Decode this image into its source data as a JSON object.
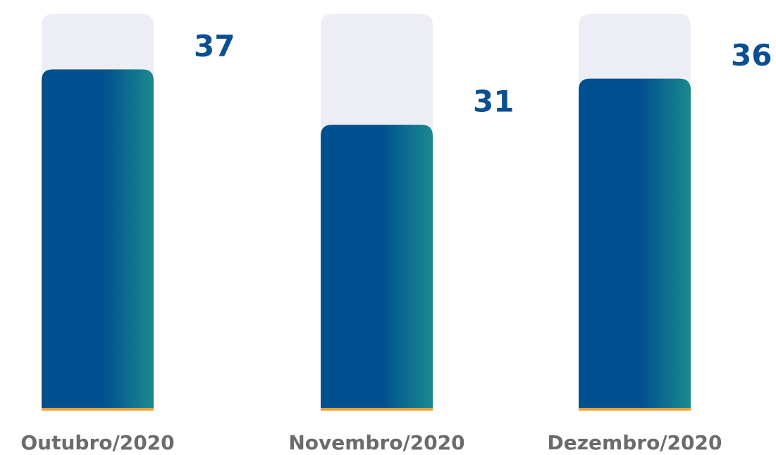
{
  "chart_data": {
    "type": "bar",
    "categories": [
      "Outubro/2020",
      "Novembro/2020",
      "Dezembro/2020"
    ],
    "values": [
      37,
      31,
      36
    ],
    "ylim": [
      0,
      43
    ],
    "color": "#00508f",
    "color_end": "#1b8a8f",
    "track_color": "#ededf5",
    "baseline_color": "#f0a030"
  }
}
